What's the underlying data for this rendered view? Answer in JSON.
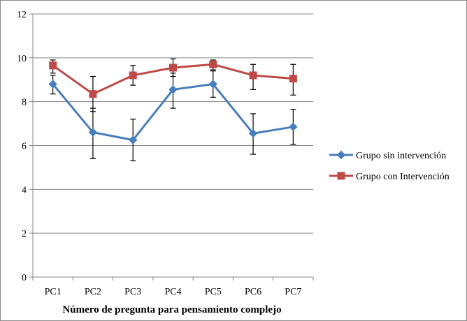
{
  "chart_data": {
    "type": "line",
    "categories": [
      "PC1",
      "PC2",
      "PC3",
      "PC4",
      "PC5",
      "PC6",
      "PC7"
    ],
    "xlabel": "Número de pregunta para pensamiento complejo",
    "ylabel": "",
    "ylim": [
      0,
      12
    ],
    "yticks": [
      0,
      2,
      4,
      6,
      8,
      10,
      12
    ],
    "grid": true,
    "legend": "right",
    "series": [
      {
        "name": "Grupo sin intervención",
        "color": "#4a7ebb",
        "marker": "diamond",
        "values": [
          8.8,
          6.6,
          6.25,
          8.55,
          8.8,
          6.55,
          6.85
        ],
        "error_low": [
          8.35,
          5.4,
          5.3,
          7.7,
          8.2,
          5.6,
          6.05
        ],
        "error_high": [
          9.2,
          7.7,
          7.2,
          9.3,
          9.4,
          7.45,
          7.65
        ]
      },
      {
        "name": "Grupo con Intervención",
        "color": "#be4b48",
        "marker": "square",
        "values": [
          9.65,
          8.35,
          9.2,
          9.55,
          9.7,
          9.2,
          9.05
        ],
        "error_low": [
          9.3,
          7.55,
          8.75,
          9.15,
          9.45,
          8.55,
          8.3
        ],
        "error_high": [
          9.9,
          9.15,
          9.65,
          9.95,
          9.9,
          9.7,
          9.7
        ]
      }
    ]
  }
}
